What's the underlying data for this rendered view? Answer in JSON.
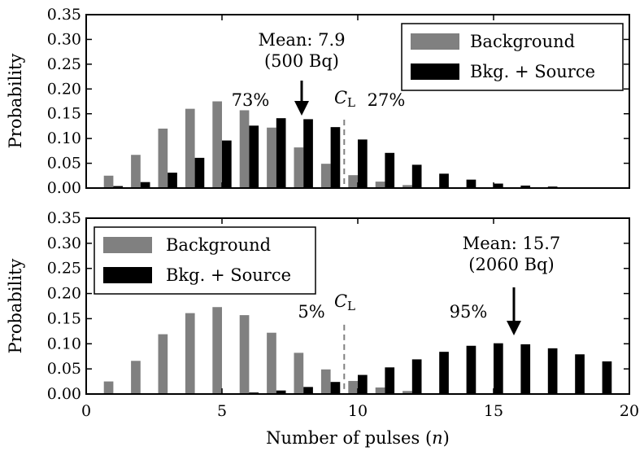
{
  "chart_data": [
    {
      "type": "bar",
      "xlabel": "",
      "ylabel": "Probability",
      "xlim": [
        0,
        20
      ],
      "ylim": [
        0,
        0.35
      ],
      "yticks": [
        "0.00",
        "0.05",
        "0.10",
        "0.15",
        "0.20",
        "0.25",
        "0.30",
        "0.35"
      ],
      "legend_position": "top-right",
      "series": [
        {
          "name": "Background",
          "color": "#808080",
          "x": [
            1,
            2,
            3,
            4,
            5,
            6,
            7,
            8,
            9,
            10,
            11,
            12
          ],
          "values": [
            0.025,
            0.067,
            0.12,
            0.16,
            0.175,
            0.157,
            0.122,
            0.082,
            0.049,
            0.026,
            0.013,
            0.006
          ]
        },
        {
          "name": "Bkg. + Source",
          "color": "#000000",
          "x": [
            1,
            2,
            3,
            4,
            5,
            6,
            7,
            8,
            9,
            10,
            11,
            12,
            13,
            14,
            15,
            16,
            17,
            18
          ],
          "values": [
            0.004,
            0.012,
            0.031,
            0.061,
            0.096,
            0.126,
            0.141,
            0.139,
            0.123,
            0.098,
            0.071,
            0.047,
            0.029,
            0.017,
            0.009,
            0.005,
            0.003,
            0.001
          ]
        }
      ],
      "threshold": {
        "label": "C",
        "subscript": "L",
        "x": 9.5
      },
      "annotations": {
        "mean_line1": "Mean: 7.9",
        "mean_line2": "(500 Bq)",
        "mean_x": 7.9,
        "left_pct": "73%",
        "right_pct": "27%"
      }
    },
    {
      "type": "bar",
      "xlabel": "Number of pulses (n)",
      "ylabel": "Probability",
      "xlim": [
        0,
        20
      ],
      "ylim": [
        0,
        0.35
      ],
      "xticks": [
        "0",
        "5",
        "10",
        "15",
        "20"
      ],
      "yticks": [
        "0.00",
        "0.05",
        "0.10",
        "0.15",
        "0.20",
        "0.25",
        "0.30",
        "0.35"
      ],
      "legend_position": "top-left",
      "series": [
        {
          "name": "Background",
          "color": "#808080",
          "x": [
            1,
            2,
            3,
            4,
            5,
            6,
            7,
            8,
            9,
            10,
            11,
            12
          ],
          "values": [
            0.025,
            0.066,
            0.119,
            0.161,
            0.173,
            0.157,
            0.122,
            0.082,
            0.049,
            0.026,
            0.013,
            0.006
          ]
        },
        {
          "name": "Bkg. + Source",
          "color": "#000000",
          "x": [
            3,
            4,
            5,
            6,
            7,
            8,
            9,
            10,
            11,
            12,
            13,
            14,
            15,
            16,
            17,
            18,
            19
          ],
          "values": [
            0.0005,
            0.0005,
            0.001,
            0.003,
            0.007,
            0.014,
            0.024,
            0.038,
            0.053,
            0.069,
            0.084,
            0.096,
            0.101,
            0.099,
            0.091,
            0.079,
            0.065
          ]
        }
      ],
      "threshold": {
        "label": "C",
        "subscript": "L",
        "x": 9.5
      },
      "annotations": {
        "mean_line1": "Mean: 15.7",
        "mean_line2": "(2060 Bq)",
        "mean_x": 15.7,
        "left_pct": "5%",
        "right_pct": "95%"
      }
    }
  ]
}
